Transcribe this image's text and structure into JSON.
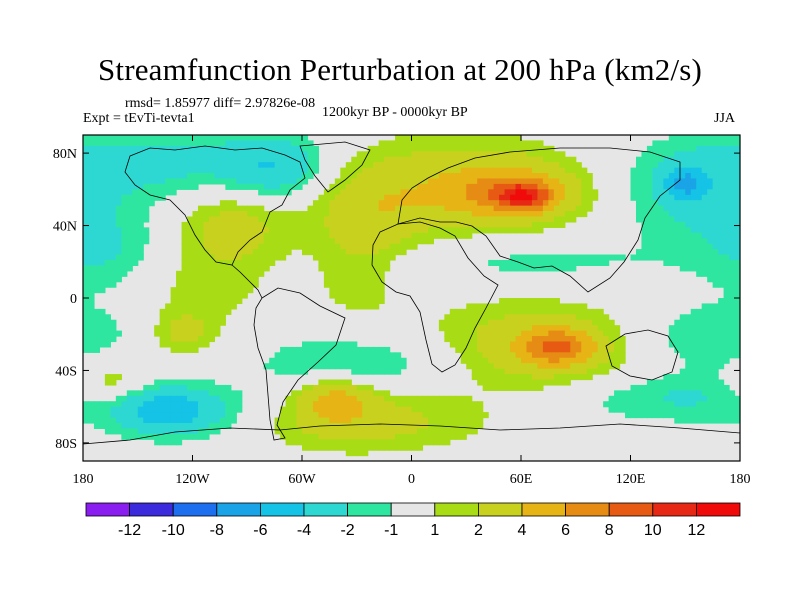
{
  "chart_data": {
    "type": "heatmap",
    "title": "Streamfunction Perturbation at 200 hPa (km2/s)",
    "stats": "rmsd= 1.85977 diff= 2.97826e-08",
    "experiment": "Expt = tEvTi-tevta1",
    "period": "1200kyr BP - 0000kyr BP",
    "season": "JJA",
    "x_ticks": [
      "180",
      "120W",
      "60W",
      "0",
      "60E",
      "120E",
      "180"
    ],
    "y_ticks": [
      "80N",
      "40N",
      "0",
      "40S",
      "80S"
    ],
    "xlim": [
      -180,
      180
    ],
    "ylim": [
      -90,
      90
    ],
    "colorbar_levels": [
      "-12",
      "-10",
      "-8",
      "-6",
      "-4",
      "-2",
      "-1",
      "1",
      "2",
      "4",
      "6",
      "8",
      "10",
      "12"
    ],
    "colorbar_colors": [
      "#8a1ef0",
      "#3c2bdc",
      "#1e6ef0",
      "#1aa3e6",
      "#14c3e6",
      "#2ed8d2",
      "#2ee6a0",
      "#e6e6e6",
      "#a8dc14",
      "#c8d21e",
      "#e6b414",
      "#e68c14",
      "#e65a14",
      "#e62814",
      "#f00a0a"
    ],
    "blobs": [
      {
        "lon": 28,
        "lat": 62,
        "a": 45,
        "b": 20,
        "value": 3
      },
      {
        "lon": 54,
        "lat": 58,
        "a": 24,
        "b": 10,
        "value": 5
      },
      {
        "lon": 62,
        "lat": 56,
        "a": 10,
        "b": 5,
        "value": 6
      },
      {
        "lon": -20,
        "lat": 48,
        "a": 22,
        "b": 18,
        "value": 2.2
      },
      {
        "lon": -30,
        "lat": 15,
        "a": 18,
        "b": 22,
        "value": 1.5
      },
      {
        "lon": -98,
        "lat": 40,
        "a": 22,
        "b": 15,
        "value": 2.6
      },
      {
        "lon": -120,
        "lat": 5,
        "a": 30,
        "b": 20,
        "value": 1.6
      },
      {
        "lon": -125,
        "lat": -20,
        "a": 12,
        "b": 8,
        "value": 2.5
      },
      {
        "lon": -165,
        "lat": -47,
        "a": 14,
        "b": 10,
        "value": 2.5
      },
      {
        "lon": 70,
        "lat": -27,
        "a": 45,
        "b": 18,
        "value": 3.5
      },
      {
        "lon": 80,
        "lat": -27,
        "a": 14,
        "b": 7,
        "value": 6
      },
      {
        "lon": -40,
        "lat": -68,
        "a": 50,
        "b": 12,
        "value": 3.2
      },
      {
        "lon": -42,
        "lat": -56,
        "a": 14,
        "b": 8,
        "value": 4.2
      },
      {
        "lon": -135,
        "lat": 75,
        "a": 50,
        "b": 14,
        "value": -2.5
      },
      {
        "lon": -75,
        "lat": 72,
        "a": 18,
        "b": 12,
        "value": -3.2
      },
      {
        "lon": -165,
        "lat": 25,
        "a": 25,
        "b": 18,
        "value": -2.2
      },
      {
        "lon": 155,
        "lat": 58,
        "a": 30,
        "b": 20,
        "value": -2.5
      },
      {
        "lon": 150,
        "lat": 63,
        "a": 8,
        "b": 6,
        "value": -4.2
      },
      {
        "lon": 60,
        "lat": 20,
        "a": 55,
        "b": 10,
        "value": -1.5
      },
      {
        "lon": -25,
        "lat": -35,
        "a": 45,
        "b": 12,
        "value": -2.2
      },
      {
        "lon": 160,
        "lat": -22,
        "a": 40,
        "b": 14,
        "value": -2.2
      },
      {
        "lon": 140,
        "lat": -55,
        "a": 45,
        "b": 10,
        "value": -2.2
      },
      {
        "lon": -110,
        "lat": -65,
        "a": 40,
        "b": 12,
        "value": -2.5
      },
      {
        "lon": -135,
        "lat": -62,
        "a": 18,
        "b": 8,
        "value": -4.2
      }
    ]
  }
}
